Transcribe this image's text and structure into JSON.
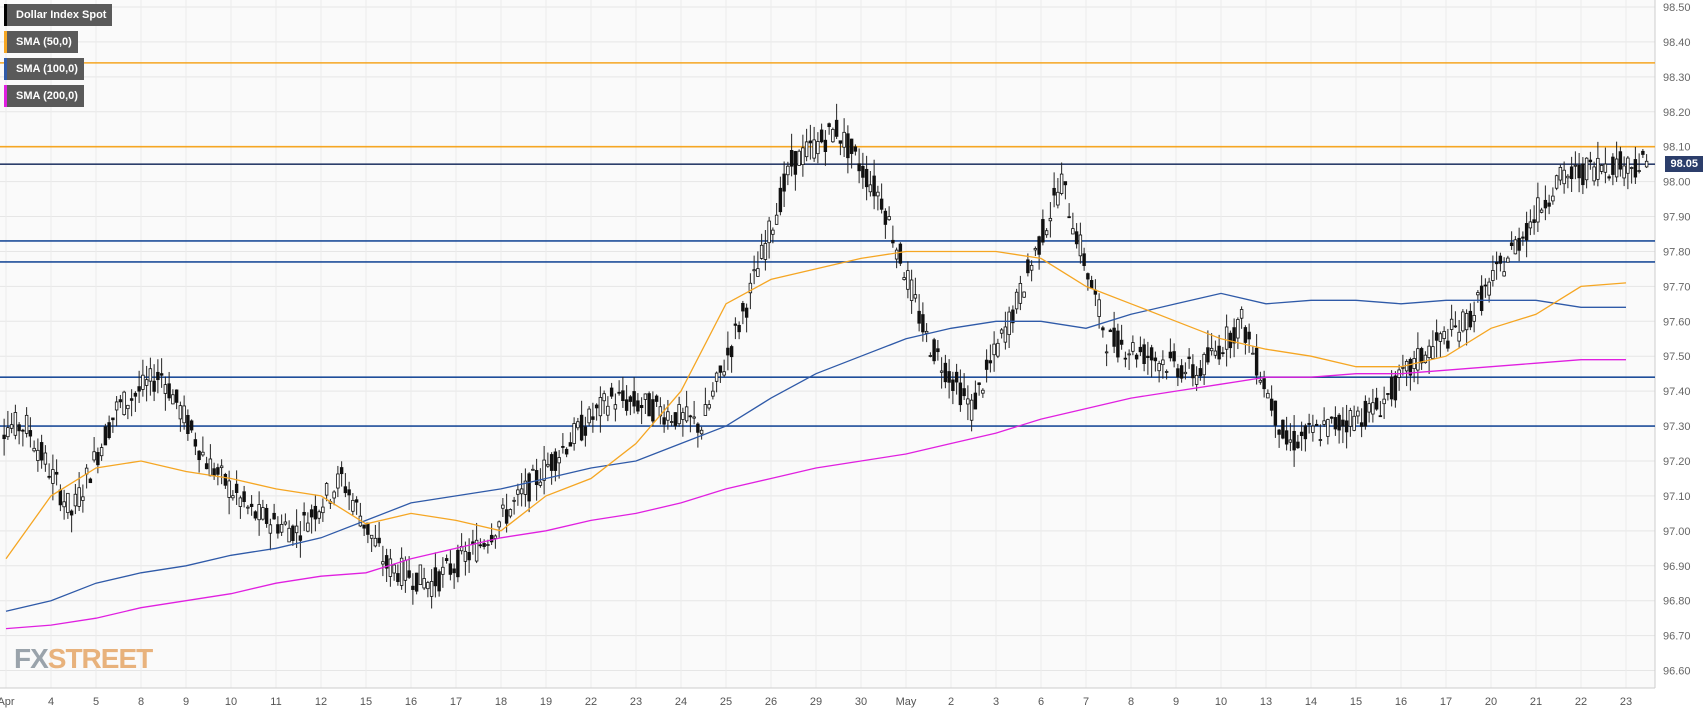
{
  "legend": [
    {
      "label": "Dollar Index Spot",
      "color": "#000000"
    },
    {
      "label": "SMA (50,0)",
      "color": "#f5a623"
    },
    {
      "label": "SMA (100,0)",
      "color": "#2f5aa8"
    },
    {
      "label": "SMA (200,0)",
      "color": "#e020e0"
    }
  ],
  "logo": {
    "fx": "FX",
    "street": "STREET"
  },
  "current_price": "98.05",
  "chart_data": {
    "type": "candlestick",
    "series_name": "Dollar Index Spot",
    "ylim": [
      96.55,
      98.52
    ],
    "y_ticks": [
      "98.50",
      "98.40",
      "98.30",
      "98.20",
      "98.10",
      "98.00",
      "97.90",
      "97.80",
      "97.70",
      "97.60",
      "97.50",
      "97.40",
      "97.30",
      "97.20",
      "97.10",
      "97.00",
      "96.90",
      "96.80",
      "96.70",
      "96.60"
    ],
    "x_ticks": [
      "Apr",
      "4",
      "5",
      "8",
      "9",
      "10",
      "11",
      "12",
      "15",
      "16",
      "17",
      "18",
      "19",
      "22",
      "23",
      "24",
      "25",
      "26",
      "29",
      "30",
      "May",
      "2",
      "3",
      "6",
      "7",
      "8",
      "9",
      "10",
      "13",
      "14",
      "15",
      "16",
      "17",
      "20",
      "21",
      "22",
      "23"
    ],
    "grid": true,
    "horizontal_levels": [
      {
        "value": 98.34,
        "color": "#f5a623"
      },
      {
        "value": 98.1,
        "color": "#f5a623"
      },
      {
        "value": 98.05,
        "color": "#2c3e6b"
      },
      {
        "value": 97.83,
        "color": "#1f4e9a"
      },
      {
        "value": 97.77,
        "color": "#1f4e9a"
      },
      {
        "value": 97.44,
        "color": "#1f4e9a"
      },
      {
        "value": 97.3,
        "color": "#1f4e9a"
      }
    ],
    "daily_close": [
      97.3,
      97.05,
      97.35,
      97.45,
      97.2,
      97.05,
      97.0,
      97.15,
      96.9,
      96.85,
      96.95,
      97.1,
      97.25,
      97.38,
      97.35,
      97.3,
      97.65,
      98.05,
      98.15,
      97.95,
      97.55,
      97.35,
      97.65,
      98.0,
      97.55,
      97.5,
      97.45,
      97.6,
      97.25,
      97.3,
      97.35,
      97.5,
      97.6,
      97.8,
      98.0,
      98.05,
      98.05
    ],
    "sma_50": [
      96.92,
      97.1,
      97.18,
      97.2,
      97.17,
      97.15,
      97.12,
      97.1,
      97.02,
      97.05,
      97.03,
      97.0,
      97.1,
      97.15,
      97.25,
      97.4,
      97.65,
      97.72,
      97.75,
      97.78,
      97.8,
      97.8,
      97.8,
      97.78,
      97.7,
      97.65,
      97.6,
      97.55,
      97.52,
      97.5,
      97.47,
      97.47,
      97.5,
      97.58,
      97.62,
      97.7,
      97.71
    ],
    "sma_100": [
      96.77,
      96.8,
      96.85,
      96.88,
      96.9,
      96.93,
      96.95,
      96.98,
      97.03,
      97.08,
      97.1,
      97.12,
      97.15,
      97.18,
      97.2,
      97.25,
      97.3,
      97.38,
      97.45,
      97.5,
      97.55,
      97.58,
      97.6,
      97.6,
      97.58,
      97.62,
      97.65,
      97.68,
      97.65,
      97.66,
      97.66,
      97.65,
      97.66,
      97.66,
      97.66,
      97.64,
      97.64
    ],
    "sma_200": [
      96.72,
      96.73,
      96.75,
      96.78,
      96.8,
      96.82,
      96.85,
      96.87,
      96.88,
      96.92,
      96.95,
      96.98,
      97.0,
      97.03,
      97.05,
      97.08,
      97.12,
      97.15,
      97.18,
      97.2,
      97.22,
      97.25,
      97.28,
      97.32,
      97.35,
      97.38,
      97.4,
      97.42,
      97.44,
      97.44,
      97.45,
      97.45,
      97.46,
      97.47,
      97.48,
      97.49,
      97.49
    ]
  }
}
